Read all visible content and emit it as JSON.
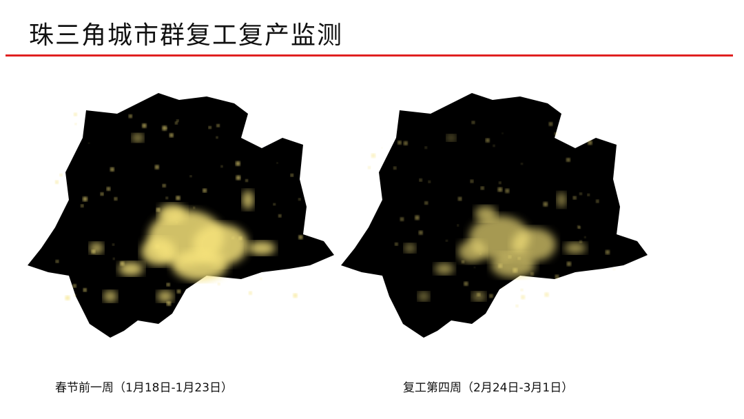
{
  "title": "珠三角城市群复工复产监测",
  "colors": {
    "accent_rule": "#e02020",
    "night_land": "#000000",
    "lights": "#f5e27a"
  },
  "maps": [
    {
      "caption": "春节前一周（1月18日-1月23日）",
      "light_intensity": 1.0
    },
    {
      "caption": "复工第四周（2月24日-3月1日）",
      "light_intensity": 0.8
    }
  ]
}
